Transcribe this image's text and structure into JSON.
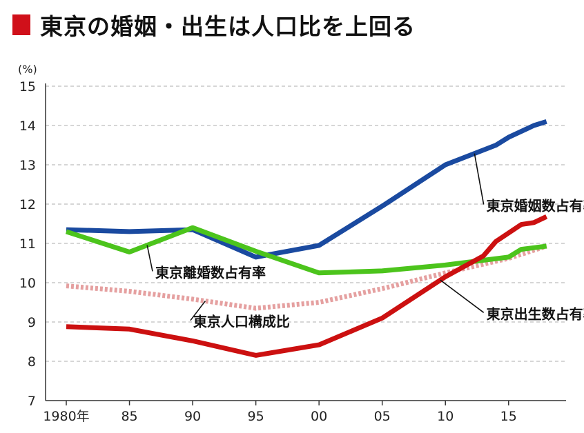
{
  "title": "東京の婚姻・出生は人口比を上回る",
  "chart_data": {
    "type": "line",
    "unit": "(%)",
    "ylim": [
      7,
      15
    ],
    "yticks": [
      "7",
      "8",
      "9",
      "10",
      "11",
      "12",
      "13",
      "14",
      "15"
    ],
    "xlim": [
      1980,
      2019
    ],
    "xticks": [
      {
        "x": 1980,
        "label": "1980年"
      },
      {
        "x": 1985,
        "label": "85"
      },
      {
        "x": 1990,
        "label": "90"
      },
      {
        "x": 1995,
        "label": "95"
      },
      {
        "x": 2000,
        "label": "00"
      },
      {
        "x": 2005,
        "label": "05"
      },
      {
        "x": 2010,
        "label": "10"
      },
      {
        "x": 2015,
        "label": "15"
      }
    ],
    "grid": true,
    "series": [
      {
        "name": "東京婚姻数占有率",
        "color": "#1a4aa0",
        "style": "solid",
        "x": [
          1980,
          1985,
          1990,
          1995,
          2000,
          2005,
          2010,
          2014,
          2015,
          2017,
          2018
        ],
        "y": [
          11.35,
          11.3,
          11.35,
          10.65,
          10.95,
          11.95,
          13.0,
          13.5,
          13.7,
          14.0,
          14.1
        ]
      },
      {
        "name": "東京離婚数占有率",
        "color": "#4cc41c",
        "style": "solid",
        "x": [
          1980,
          1985,
          1990,
          1995,
          2000,
          2005,
          2010,
          2015,
          2016,
          2018
        ],
        "y": [
          11.3,
          10.78,
          11.4,
          10.8,
          10.25,
          10.3,
          10.45,
          10.65,
          10.85,
          10.93
        ]
      },
      {
        "name": "東京人口構成比",
        "color": "#e5a0a0",
        "style": "dotted",
        "x": [
          1980,
          1985,
          1990,
          1995,
          2000,
          2005,
          2010,
          2015,
          2018
        ],
        "y": [
          9.92,
          9.78,
          9.58,
          9.35,
          9.5,
          9.85,
          10.25,
          10.62,
          10.93
        ]
      },
      {
        "name": "東京出生数占有率",
        "color": "#cc1010",
        "style": "solid",
        "x": [
          1980,
          1985,
          1990,
          1995,
          2000,
          2005,
          2010,
          2013,
          2014,
          2016,
          2017,
          2018
        ],
        "y": [
          8.88,
          8.82,
          8.52,
          8.15,
          8.42,
          9.1,
          10.15,
          10.68,
          11.05,
          11.48,
          11.53,
          11.68
        ]
      }
    ],
    "annotations": [
      {
        "text": "東京婚姻数占有率",
        "series": 0,
        "anchor_x": 2012.3,
        "text_x": 2012.7,
        "text_y": 11.85
      },
      {
        "text": "東京離婚数占有率",
        "series": 1,
        "anchor_x": 1986.4,
        "text_x": 1986.5,
        "text_y": 10.15
      },
      {
        "text": "東京人口構成比",
        "series": 2,
        "anchor_x": 1991.0,
        "text_x": 1989.5,
        "text_y": 8.9
      },
      {
        "text": "東京出生数占有率",
        "series": 3,
        "anchor_x": 2009.6,
        "text_x": 2012.7,
        "text_y": 9.1
      }
    ]
  }
}
